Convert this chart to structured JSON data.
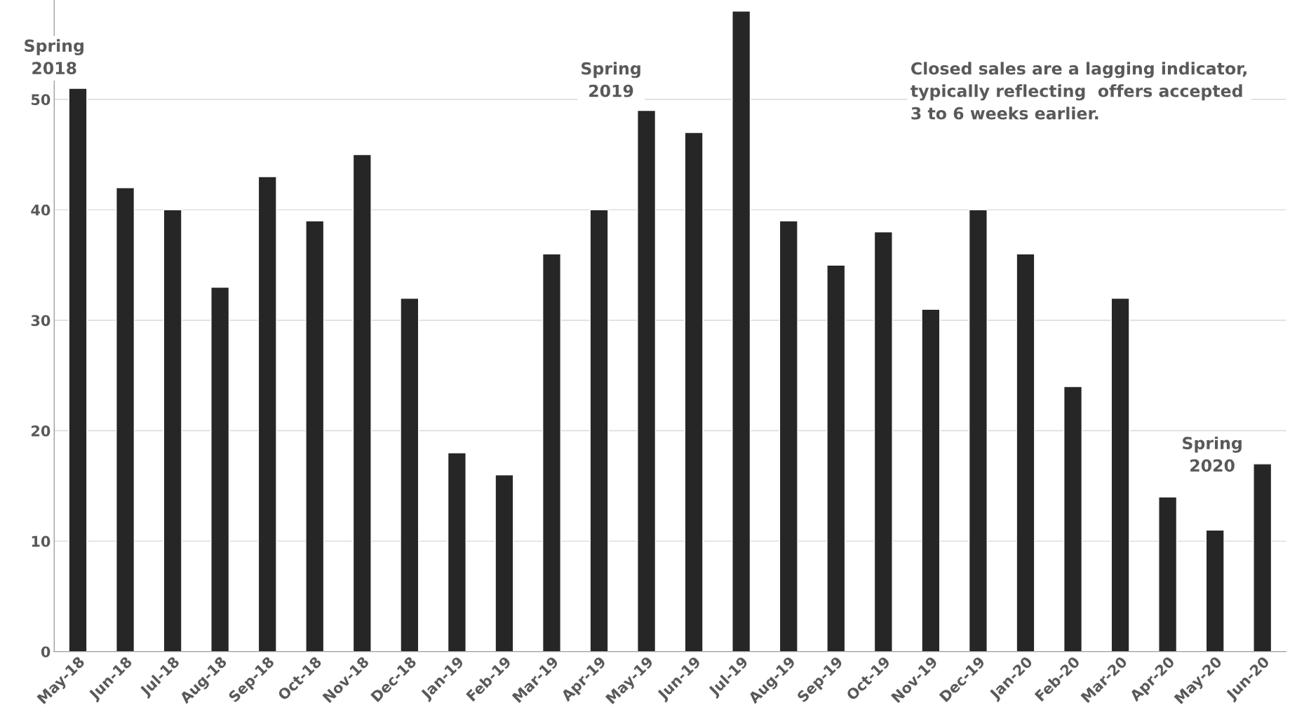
{
  "chart_data": {
    "type": "bar",
    "categories": [
      "May-18",
      "Jun-18",
      "Jul-18",
      "Aug-18",
      "Sep-18",
      "Oct-18",
      "Nov-18",
      "Dec-18",
      "Jan-19",
      "Feb-19",
      "Mar-19",
      "Apr-19",
      "May-19",
      "Jun-19",
      "Jul-19",
      "Aug-19",
      "Sep-19",
      "Oct-19",
      "Nov-19",
      "Dec-19",
      "Jan-20",
      "Feb-20",
      "Mar-20",
      "Apr-20",
      "May-20",
      "Jun-20"
    ],
    "values": [
      51,
      42,
      40,
      33,
      43,
      39,
      45,
      32,
      18,
      16,
      36,
      40,
      49,
      47,
      58,
      39,
      35,
      38,
      31,
      40,
      36,
      24,
      32,
      14,
      11,
      17
    ],
    "color": "#262626",
    "ylim": [
      0,
      59
    ],
    "yticks": [
      0,
      10,
      20,
      30,
      40,
      50
    ],
    "grid": "y",
    "annotations": [
      "Spring\n2018",
      "Spring\n2019",
      "Spring\n2020",
      "Closed sales are a lagging indicator,\ntypically reflecting  offers accepted\n3 to 6 weeks earlier."
    ]
  }
}
